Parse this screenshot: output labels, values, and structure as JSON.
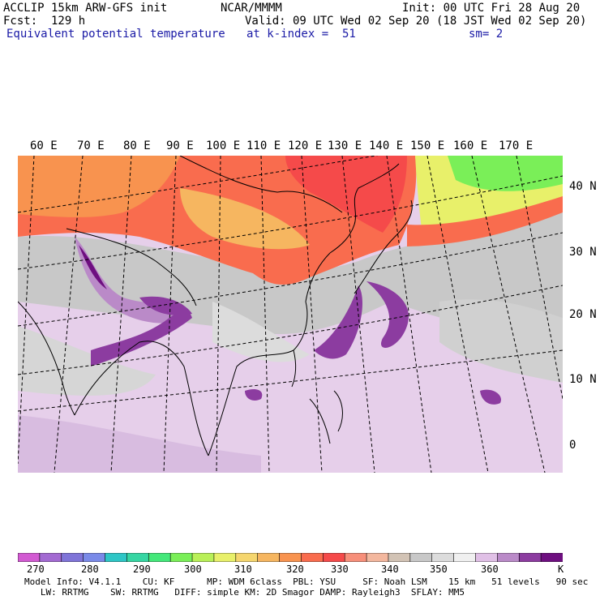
{
  "header": {
    "model": "ACCLIP 15km ARW-GFS init",
    "org": "NCAR/MMMM",
    "init": "Init: 00 UTC Fri 28 Aug 20",
    "fcst": "Fcst:  129 h",
    "valid": "Valid: 09 UTC Wed 02 Sep 20 (18 JST Wed 02 Sep 20)",
    "field": "Equivalent potential temperature",
    "level": "at k-index =  51",
    "smooth": "sm= 2"
  },
  "longitudes": [
    "60 E",
    "70 E",
    "80 E",
    "90 E",
    "100 E",
    "110 E",
    "120 E",
    "130 E",
    "140 E",
    "150 E",
    "160 E",
    "170 E"
  ],
  "latitudes": [
    "40 N",
    "30 N",
    "20 N",
    "10 N",
    "0"
  ],
  "colorbar": {
    "colors": [
      "#d25ad2",
      "#a36ad2",
      "#7f74d8",
      "#7a8ae8",
      "#2ec6c6",
      "#36d6a3",
      "#44e87a",
      "#7aef58",
      "#b9f058",
      "#e8f06a",
      "#f5d66e",
      "#f6b660",
      "#f8934f",
      "#f96c4e",
      "#f54a4a",
      "#f78f7a",
      "#f3b79e",
      "#d2c3b5",
      "#c8c8c8",
      "#dcdcdc",
      "#f0f0f0",
      "#e0c0e6",
      "#ba8ac8",
      "#8c3ca0",
      "#6e0f80"
    ],
    "labels": [
      "270",
      "280",
      "290",
      "300",
      "310",
      "320",
      "330",
      "340",
      "350",
      "360",
      "K"
    ]
  },
  "footer": {
    "line1": "Model Info: V4.1.1    CU: KF      MP: WDM 6class  PBL: YSU     SF: Noah LSM    15 km   51 levels   90 sec",
    "line2": "   LW: RRTMG    SW: RRTMG   DIFF: simple KM: 2D Smagor DAMP: Rayleigh3  SFLAY: MM5"
  },
  "map_colors": {
    "ocean_base": "#e6cfea",
    "warm_band": "#f96c4e",
    "hot_band": "#f54a4a",
    "cool_band": "#c8f06a",
    "green_band": "#7aef58",
    "gray_band": "#c8c8c8",
    "purple_dark": "#8c3ca0",
    "purple_deep": "#6e0f80",
    "purple_mid": "#ba8ac8"
  }
}
